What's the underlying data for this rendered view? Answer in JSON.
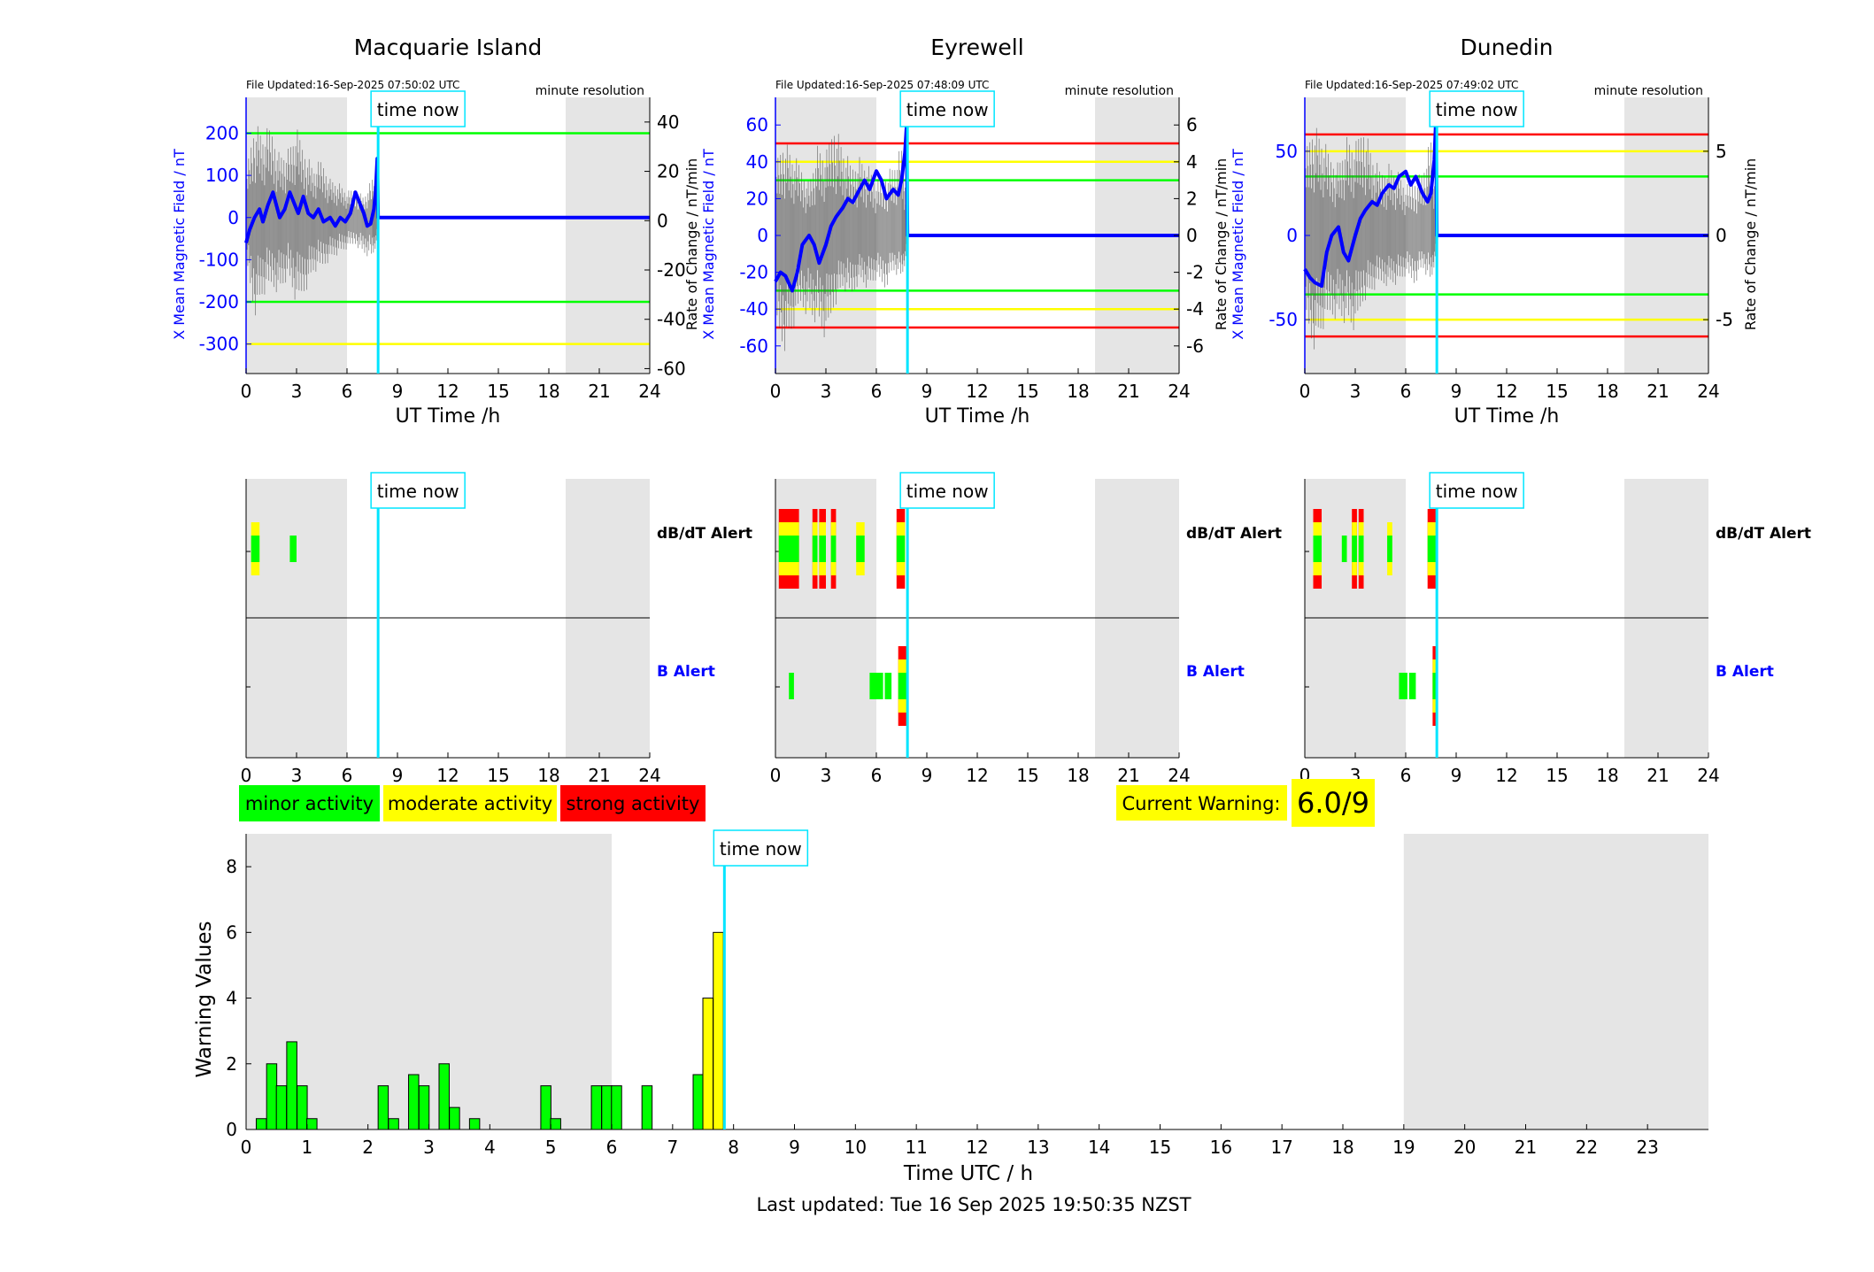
{
  "footer": "Last updated: Tue 16 Sep 2025 19:50:35 NZST",
  "time_now_label": "time now",
  "time_now_hour": 7.85,
  "legend": [
    {
      "label": "minor activity",
      "color": "#00ff00"
    },
    {
      "label": "moderate activity",
      "color": "#ffff00"
    },
    {
      "label": "strong activity",
      "color": "#ff0000"
    }
  ],
  "current_warning": {
    "label": "Current Warning:",
    "value": "6.0/9"
  },
  "colors": {
    "x_field": "#0000ff",
    "rate": "#555555",
    "now_line": "#00e5ff",
    "shade": "#e5e5e5",
    "green": "#00ff00",
    "yellow": "#ffff00",
    "red": "#ff0000"
  },
  "shaded_hours": [
    [
      0,
      6
    ],
    [
      19,
      24
    ]
  ],
  "alert_labels": {
    "dbdt": "dB/dT Alert",
    "b": "B Alert"
  },
  "chart_data": [
    {
      "type": "line",
      "title": "Macquarie Island",
      "file_updated": "File Updated:16-Sep-2025 07:50:02 UTC",
      "resolution": "minute resolution",
      "xlabel": "UT Time /h",
      "ylabel_left": "X Mean Magnetic Field / nT",
      "ylabel_right": "Rate of Change / nT/min",
      "xlim": [
        0,
        24
      ],
      "xticks": [
        0,
        3,
        6,
        9,
        12,
        15,
        18,
        21,
        24
      ],
      "ylim_left": [
        -370,
        285
      ],
      "yticks_left": [
        -300,
        -200,
        -100,
        0,
        100,
        200
      ],
      "ylim_right": [
        -62,
        50
      ],
      "yticks_right": [
        -60,
        -40,
        -20,
        0,
        20,
        40
      ],
      "thresholds": [
        {
          "value": 200,
          "color": "green"
        },
        {
          "value": -200,
          "color": "green"
        },
        {
          "value": -300,
          "color": "yellow"
        }
      ],
      "x_field": {
        "x": [
          0,
          0.2,
          0.5,
          0.8,
          1.0,
          1.3,
          1.6,
          2.0,
          2.3,
          2.6,
          2.9,
          3.1,
          3.4,
          3.7,
          4.0,
          4.3,
          4.6,
          5.0,
          5.3,
          5.6,
          5.9,
          6.2,
          6.5,
          6.8,
          7.0,
          7.2,
          7.4,
          7.6,
          7.7,
          7.8,
          7.85,
          24
        ],
        "y": [
          -60,
          -30,
          0,
          20,
          -10,
          30,
          60,
          0,
          20,
          60,
          30,
          10,
          50,
          10,
          0,
          20,
          -10,
          0,
          -20,
          0,
          -10,
          10,
          60,
          30,
          10,
          -20,
          -15,
          20,
          60,
          140,
          0,
          0
        ]
      },
      "rate_envelope": {
        "x": [
          0,
          0.5,
          1.0,
          1.5,
          2.0,
          2.5,
          3.0,
          3.5,
          4.0,
          4.5,
          5.0,
          5.5,
          6.0,
          6.5,
          7.0,
          7.5,
          7.85
        ],
        "hi": [
          20,
          42,
          36,
          40,
          28,
          30,
          38,
          30,
          22,
          26,
          18,
          16,
          12,
          14,
          10,
          18,
          12
        ],
        "lo": [
          -18,
          -40,
          -32,
          -28,
          -30,
          -24,
          -36,
          -30,
          -22,
          -20,
          -16,
          -14,
          -12,
          -10,
          -14,
          -16,
          -8
        ]
      },
      "alerts": {
        "dbdt": [
          {
            "start": 0.3,
            "end": 0.8,
            "level": "yellow"
          },
          {
            "start": 2.6,
            "end": 3.0,
            "level": "green"
          }
        ],
        "b": []
      }
    },
    {
      "type": "line",
      "title": "Eyrewell",
      "file_updated": "File Updated:16-Sep-2025 07:48:09 UTC",
      "resolution": "minute resolution",
      "xlabel": "UT Time /h",
      "ylabel_left": "X Mean Magnetic Field / nT",
      "ylabel_right": "Rate of Change / nT/min",
      "xlim": [
        0,
        24
      ],
      "xticks": [
        0,
        3,
        6,
        9,
        12,
        15,
        18,
        21,
        24
      ],
      "ylim_left": [
        -75,
        75
      ],
      "yticks_left": [
        -60,
        -40,
        -20,
        0,
        20,
        40,
        60
      ],
      "ylim_right": [
        -7.5,
        7.5
      ],
      "yticks_right": [
        -6,
        -4,
        -2,
        0,
        2,
        4,
        6
      ],
      "thresholds": [
        {
          "value": 50,
          "color": "red"
        },
        {
          "value": 40,
          "color": "yellow"
        },
        {
          "value": 30,
          "color": "green"
        },
        {
          "value": -30,
          "color": "green"
        },
        {
          "value": -40,
          "color": "yellow"
        },
        {
          "value": -50,
          "color": "red"
        }
      ],
      "x_field": {
        "x": [
          0,
          0.3,
          0.6,
          1.0,
          1.3,
          1.6,
          2.0,
          2.3,
          2.6,
          3.0,
          3.3,
          3.6,
          4.0,
          4.3,
          4.6,
          5.0,
          5.3,
          5.6,
          6.0,
          6.3,
          6.6,
          7.0,
          7.3,
          7.5,
          7.7,
          7.8,
          7.85,
          24
        ],
        "y": [
          -25,
          -20,
          -22,
          -30,
          -20,
          -5,
          0,
          -5,
          -15,
          -5,
          5,
          10,
          15,
          20,
          18,
          25,
          30,
          25,
          35,
          30,
          20,
          25,
          22,
          30,
          45,
          60,
          0,
          0
        ]
      },
      "rate_envelope": {
        "x": [
          0,
          0.5,
          1.0,
          1.5,
          2.0,
          2.5,
          3.0,
          3.5,
          4.0,
          4.5,
          5.0,
          5.5,
          6.0,
          6.5,
          7.0,
          7.5,
          7.85
        ],
        "hi": [
          4,
          5.5,
          4.5,
          4,
          3,
          5,
          4.5,
          6.5,
          5,
          4,
          4.5,
          4,
          3,
          3.5,
          4,
          5,
          2
        ],
        "lo": [
          -5,
          -6.5,
          -5.5,
          -4,
          -4.5,
          -5,
          -6,
          -4,
          -3,
          -3.5,
          -2.5,
          -3,
          -2.5,
          -3,
          -2,
          -2.5,
          -1
        ]
      },
      "alerts": {
        "dbdt": [
          {
            "start": 0.2,
            "end": 1.4,
            "level": "red"
          },
          {
            "start": 2.2,
            "end": 2.5,
            "level": "red"
          },
          {
            "start": 2.6,
            "end": 3.0,
            "level": "red"
          },
          {
            "start": 3.3,
            "end": 3.6,
            "level": "red"
          },
          {
            "start": 4.8,
            "end": 5.3,
            "level": "yellow"
          },
          {
            "start": 7.2,
            "end": 7.7,
            "level": "red"
          }
        ],
        "b": [
          {
            "start": 0.8,
            "end": 1.1,
            "level": "green"
          },
          {
            "start": 5.6,
            "end": 6.4,
            "level": "green"
          },
          {
            "start": 6.5,
            "end": 6.9,
            "level": "green"
          },
          {
            "start": 7.3,
            "end": 7.8,
            "level": "red"
          }
        ]
      }
    },
    {
      "type": "line",
      "title": "Dunedin",
      "file_updated": "File Updated:16-Sep-2025 07:49:02 UTC",
      "resolution": "minute resolution",
      "xlabel": "UT Time /h",
      "ylabel_left": "X Mean Magnetic Field / nT",
      "ylabel_right": "Rate of Change / nT/min",
      "xlim": [
        0,
        24
      ],
      "xticks": [
        0,
        3,
        6,
        9,
        12,
        15,
        18,
        21,
        24
      ],
      "ylim_left": [
        -82,
        82
      ],
      "yticks_left": [
        -50,
        0,
        50
      ],
      "ylim_right": [
        -8.2,
        8.2
      ],
      "yticks_right": [
        -5,
        0,
        5
      ],
      "thresholds": [
        {
          "value": 60,
          "color": "red"
        },
        {
          "value": 50,
          "color": "yellow"
        },
        {
          "value": 35,
          "color": "green"
        },
        {
          "value": -35,
          "color": "green"
        },
        {
          "value": -50,
          "color": "yellow"
        },
        {
          "value": -60,
          "color": "red"
        }
      ],
      "x_field": {
        "x": [
          0,
          0.3,
          0.6,
          1.0,
          1.3,
          1.6,
          2.0,
          2.3,
          2.6,
          3.0,
          3.3,
          3.6,
          4.0,
          4.3,
          4.6,
          5.0,
          5.3,
          5.6,
          6.0,
          6.3,
          6.6,
          7.0,
          7.3,
          7.5,
          7.7,
          7.8,
          7.85,
          24
        ],
        "y": [
          -20,
          -25,
          -28,
          -30,
          -10,
          0,
          5,
          -10,
          -15,
          0,
          10,
          15,
          20,
          18,
          25,
          30,
          28,
          35,
          38,
          30,
          35,
          25,
          20,
          25,
          45,
          70,
          0,
          0
        ]
      },
      "rate_envelope": {
        "x": [
          0,
          0.5,
          1.0,
          1.5,
          2.0,
          2.5,
          3.0,
          3.5,
          4.0,
          4.5,
          5.0,
          5.5,
          6.0,
          6.5,
          7.0,
          7.5,
          7.85
        ],
        "hi": [
          5,
          7,
          6,
          5,
          4.5,
          6,
          5.5,
          7,
          5,
          4,
          4.5,
          4,
          3,
          3.5,
          4,
          6,
          2
        ],
        "lo": [
          -5,
          -7,
          -6,
          -5,
          -5,
          -5.5,
          -6,
          -4,
          -3.5,
          -3,
          -3,
          -3,
          -2.5,
          -3,
          -2,
          -3,
          -1
        ]
      },
      "alerts": {
        "dbdt": [
          {
            "start": 0.5,
            "end": 1.0,
            "level": "red"
          },
          {
            "start": 2.2,
            "end": 2.5,
            "level": "green"
          },
          {
            "start": 2.8,
            "end": 3.1,
            "level": "red"
          },
          {
            "start": 3.2,
            "end": 3.5,
            "level": "red"
          },
          {
            "start": 4.9,
            "end": 5.2,
            "level": "yellow"
          },
          {
            "start": 7.3,
            "end": 7.8,
            "level": "red"
          }
        ],
        "b": [
          {
            "start": 5.6,
            "end": 6.1,
            "level": "green"
          },
          {
            "start": 6.2,
            "end": 6.6,
            "level": "green"
          },
          {
            "start": 7.6,
            "end": 7.9,
            "level": "red"
          }
        ]
      }
    },
    {
      "type": "bar",
      "xlabel": "Time UTC / h",
      "ylabel": "Warning Values",
      "xlim": [
        0,
        24
      ],
      "ylim": [
        0,
        9
      ],
      "xticks": [
        0,
        1,
        2,
        3,
        4,
        5,
        6,
        7,
        8,
        9,
        10,
        11,
        12,
        13,
        14,
        15,
        16,
        17,
        18,
        19,
        20,
        21,
        22,
        23
      ],
      "yticks": [
        0,
        2,
        4,
        6,
        8
      ],
      "bar_width_h": 0.1667,
      "bars": [
        {
          "x": 0.25,
          "value": 0.33,
          "level": "green"
        },
        {
          "x": 0.42,
          "value": 2.0,
          "level": "green"
        },
        {
          "x": 0.58,
          "value": 1.33,
          "level": "green"
        },
        {
          "x": 0.75,
          "value": 2.67,
          "level": "green"
        },
        {
          "x": 0.92,
          "value": 1.33,
          "level": "green"
        },
        {
          "x": 1.08,
          "value": 0.33,
          "level": "green"
        },
        {
          "x": 2.25,
          "value": 1.33,
          "level": "green"
        },
        {
          "x": 2.42,
          "value": 0.33,
          "level": "green"
        },
        {
          "x": 2.75,
          "value": 1.67,
          "level": "green"
        },
        {
          "x": 2.92,
          "value": 1.33,
          "level": "green"
        },
        {
          "x": 3.25,
          "value": 2.0,
          "level": "green"
        },
        {
          "x": 3.42,
          "value": 0.67,
          "level": "green"
        },
        {
          "x": 3.75,
          "value": 0.33,
          "level": "green"
        },
        {
          "x": 4.92,
          "value": 1.33,
          "level": "green"
        },
        {
          "x": 5.08,
          "value": 0.33,
          "level": "green"
        },
        {
          "x": 5.75,
          "value": 1.33,
          "level": "green"
        },
        {
          "x": 5.92,
          "value": 1.33,
          "level": "green"
        },
        {
          "x": 6.08,
          "value": 1.33,
          "level": "green"
        },
        {
          "x": 6.58,
          "value": 1.33,
          "level": "green"
        },
        {
          "x": 7.42,
          "value": 1.67,
          "level": "green"
        },
        {
          "x": 7.58,
          "value": 4.0,
          "level": "yellow"
        },
        {
          "x": 7.75,
          "value": 6.0,
          "level": "yellow"
        }
      ]
    }
  ]
}
